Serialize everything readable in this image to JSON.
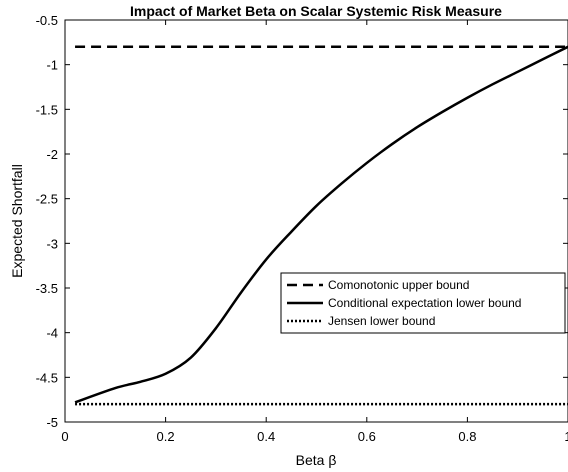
{
  "chart_data": {
    "type": "line",
    "title": "Impact of Market Beta on Scalar Systemic Risk Measure",
    "xlabel": "Beta β",
    "ylabel": "Expected Shortfall",
    "xlim": [
      0,
      1
    ],
    "ylim": [
      -5,
      -0.5
    ],
    "x_ticks": [
      0,
      0.2,
      0.4,
      0.6,
      0.8,
      1
    ],
    "x_tick_labels": [
      "0",
      "0.2",
      "0.4",
      "0.6",
      "0.8",
      "1"
    ],
    "y_ticks": [
      -0.5,
      -1,
      -1.5,
      -2,
      -2.5,
      -3,
      -3.5,
      -4,
      -4.5,
      -5
    ],
    "y_tick_labels": [
      "-0.5",
      "-1",
      "-1.5",
      "-2",
      "-2.5",
      "-3",
      "-3.5",
      "-4",
      "-4.5",
      "-5"
    ],
    "grid": false,
    "legend_position": "right",
    "series": [
      {
        "name": "Comonotonic upper bound",
        "style": "dashed",
        "color": "#000000",
        "x": [
          0.02,
          1.0
        ],
        "y": [
          -0.8,
          -0.8
        ]
      },
      {
        "name": "Conditional expectation lower bound",
        "style": "solid",
        "color": "#000000",
        "x": [
          0.02,
          0.1,
          0.15,
          0.2,
          0.25,
          0.3,
          0.35,
          0.4,
          0.45,
          0.5,
          0.55,
          0.6,
          0.65,
          0.7,
          0.75,
          0.8,
          0.85,
          0.9,
          0.95,
          1.0
        ],
        "y": [
          -4.78,
          -4.62,
          -4.55,
          -4.46,
          -4.28,
          -3.95,
          -3.55,
          -3.18,
          -2.87,
          -2.58,
          -2.33,
          -2.1,
          -1.89,
          -1.7,
          -1.53,
          -1.37,
          -1.22,
          -1.08,
          -0.94,
          -0.8
        ]
      },
      {
        "name": "Jensen lower bound",
        "style": "dotted",
        "color": "#000000",
        "x": [
          0.02,
          1.0
        ],
        "y": [
          -4.8,
          -4.8
        ]
      }
    ]
  }
}
